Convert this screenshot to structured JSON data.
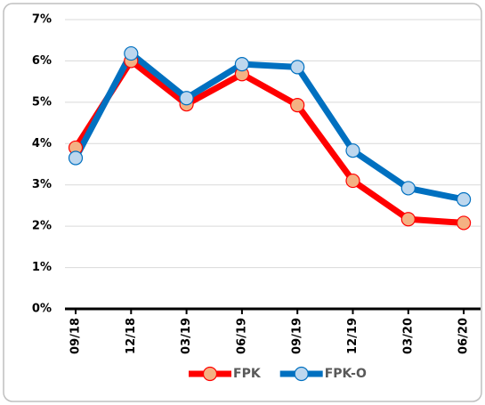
{
  "chart_data": {
    "type": "line",
    "categories": [
      "09/18",
      "12/18",
      "03/19",
      "06/19",
      "09/19",
      "12/19",
      "03/20",
      "06/20"
    ],
    "series": [
      {
        "name": "FPK",
        "color": "#ff0000",
        "marker_fill": "#f4b183",
        "values": [
          3.9,
          6.0,
          4.95,
          5.68,
          4.93,
          3.1,
          2.17,
          2.08
        ]
      },
      {
        "name": "FPK-O",
        "color": "#0070c0",
        "marker_fill": "#bdd7ee",
        "values": [
          3.65,
          6.18,
          5.1,
          5.92,
          5.85,
          3.83,
          2.92,
          2.65
        ]
      }
    ],
    "ylim": [
      0,
      7
    ],
    "yticks": [
      {
        "value": 0,
        "label": "0%"
      },
      {
        "value": 1,
        "label": "1%"
      },
      {
        "value": 2,
        "label": "2%"
      },
      {
        "value": 3,
        "label": "3%"
      },
      {
        "value": 4,
        "label": "4%"
      },
      {
        "value": 5,
        "label": "5%"
      },
      {
        "value": 6,
        "label": "6%"
      },
      {
        "value": 7,
        "label": "7%"
      }
    ],
    "grid": true,
    "legend": "bottom"
  }
}
